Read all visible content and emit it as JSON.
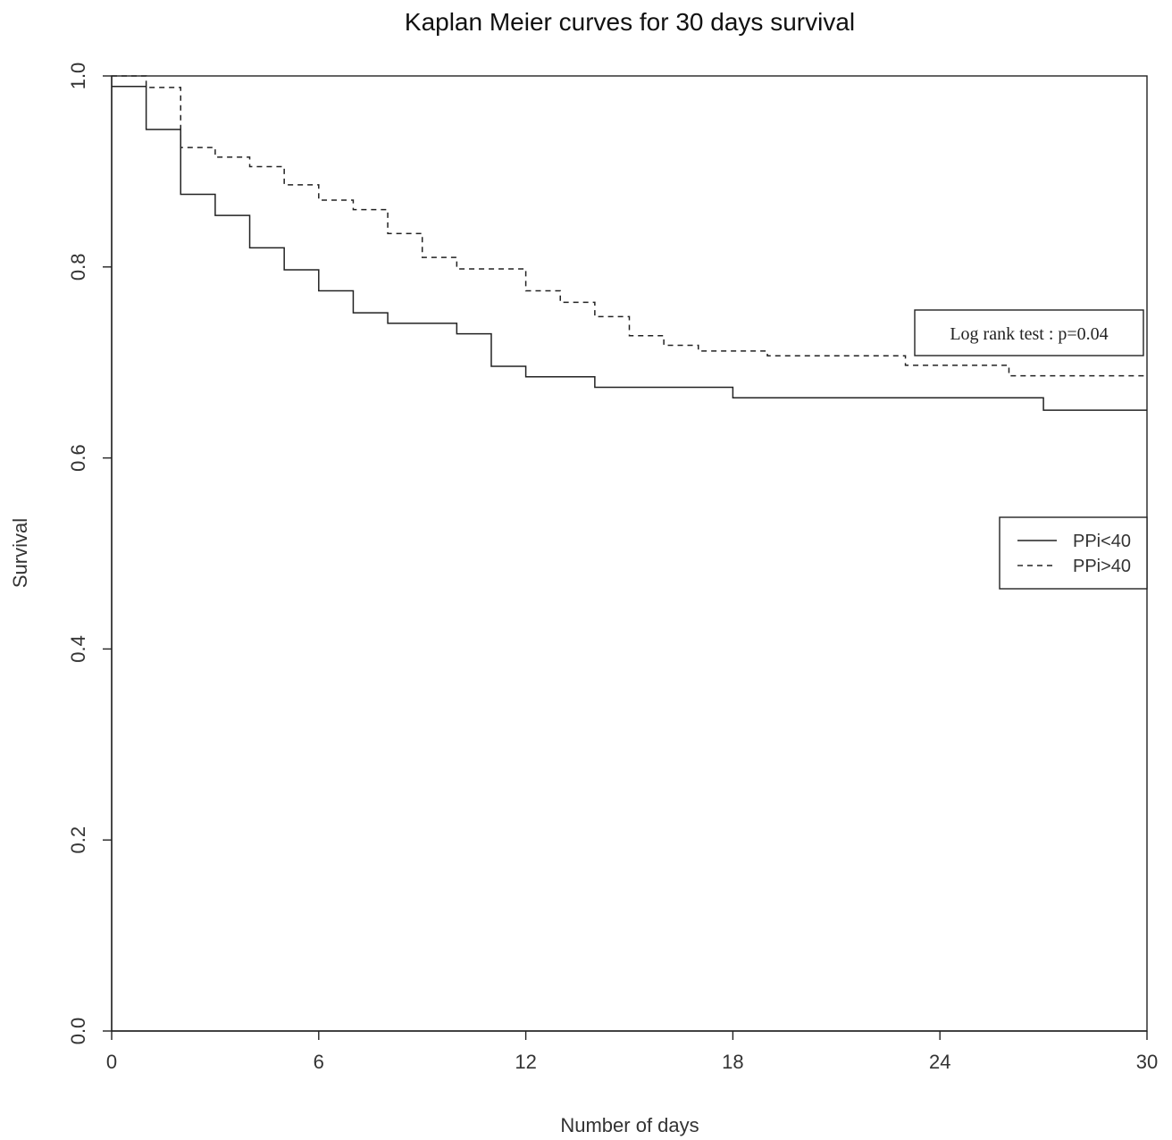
{
  "chart_data": {
    "type": "line",
    "title": "Kaplan Meier curves for 30 days survival",
    "xlabel": "Number of days",
    "ylabel": "Survival",
    "xlim": [
      0,
      30
    ],
    "ylim": [
      0,
      1
    ],
    "x_ticks": [
      0,
      6,
      12,
      18,
      24,
      30
    ],
    "x_tick_labels": [
      "0",
      "6",
      "12",
      "18",
      "24",
      "30"
    ],
    "y_ticks": [
      0,
      0.2,
      0.4,
      0.6,
      0.8,
      1.0
    ],
    "y_tick_labels": [
      "0.0",
      "0.2",
      "0.4",
      "0.6",
      "0.8",
      "1.0"
    ],
    "step": "post",
    "grid": false,
    "legend_position": "right",
    "series": [
      {
        "name": "PPi<40",
        "line_style": "solid",
        "color": "#222222",
        "x": [
          0,
          1,
          2,
          3,
          4,
          5,
          6,
          7,
          8,
          10,
          11,
          12,
          14,
          18,
          27,
          30
        ],
        "y": [
          0.989,
          0.944,
          0.876,
          0.854,
          0.82,
          0.797,
          0.775,
          0.752,
          0.741,
          0.73,
          0.696,
          0.685,
          0.674,
          0.663,
          0.65,
          0.65
        ]
      },
      {
        "name": "PPi>40",
        "line_style": "dashed",
        "color": "#222222",
        "x": [
          0,
          1,
          2,
          3,
          4,
          5,
          6,
          7,
          8,
          9,
          10,
          12,
          13,
          14,
          15,
          16,
          17,
          19,
          23,
          26,
          30
        ],
        "y": [
          1.0,
          0.988,
          0.925,
          0.915,
          0.905,
          0.886,
          0.87,
          0.86,
          0.835,
          0.81,
          0.798,
          0.775,
          0.763,
          0.748,
          0.728,
          0.718,
          0.712,
          0.707,
          0.697,
          0.686,
          0.686
        ]
      }
    ],
    "annotation": "Log rank test : p=0.04"
  }
}
